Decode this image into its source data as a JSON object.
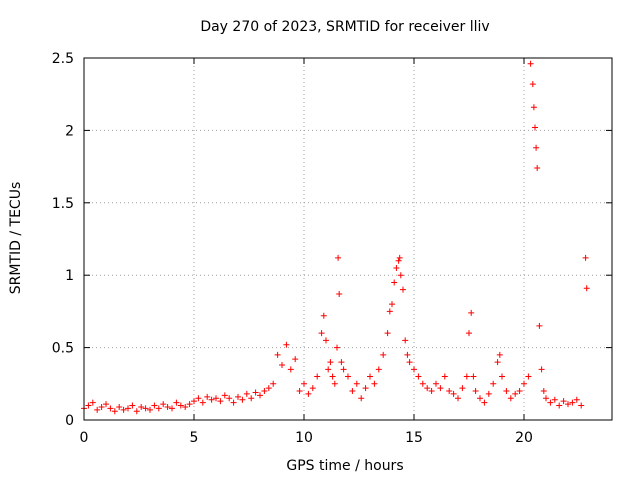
{
  "chart_data": {
    "type": "scatter",
    "title": "Day 270 of 2023, SRMTID for receiver lliv",
    "xlabel": "GPS time / hours",
    "ylabel": "SRMTID / TECUs",
    "xlim": [
      0,
      24
    ],
    "ylim": [
      0,
      2.5
    ],
    "x_ticks": [
      0,
      5,
      10,
      15,
      20
    ],
    "x_tick_labels": [
      "0",
      "5",
      "10",
      "15",
      "20"
    ],
    "y_ticks": [
      0,
      0.5,
      1,
      1.5,
      2,
      2.5
    ],
    "y_tick_labels": [
      "0",
      "0.5",
      "1",
      "1.5",
      "2",
      "2.5"
    ],
    "grid": true,
    "marker": "+",
    "series": [
      {
        "name": "SRMTID",
        "color": "#ff0000",
        "x": [
          0.0,
          0.2,
          0.4,
          0.6,
          0.8,
          1.0,
          1.2,
          1.4,
          1.6,
          1.8,
          2.0,
          2.2,
          2.4,
          2.6,
          2.8,
          3.0,
          3.2,
          3.4,
          3.6,
          3.8,
          4.0,
          4.2,
          4.4,
          4.6,
          4.8,
          5.0,
          5.2,
          5.4,
          5.6,
          5.8,
          6.0,
          6.2,
          6.4,
          6.6,
          6.8,
          7.0,
          7.2,
          7.4,
          7.6,
          7.8,
          8.0,
          8.2,
          8.4,
          8.6,
          8.8,
          9.0,
          9.2,
          9.4,
          9.6,
          9.8,
          10.0,
          10.2,
          10.4,
          10.6,
          10.8,
          10.9,
          11.0,
          11.1,
          11.2,
          11.3,
          11.4,
          11.5,
          11.55,
          11.6,
          11.7,
          11.8,
          12.0,
          12.2,
          12.4,
          12.6,
          12.8,
          13.0,
          13.2,
          13.4,
          13.6,
          13.8,
          13.9,
          14.0,
          14.1,
          14.2,
          14.3,
          14.35,
          14.4,
          14.5,
          14.6,
          14.7,
          14.8,
          15.0,
          15.2,
          15.4,
          15.6,
          15.8,
          16.0,
          16.2,
          16.4,
          16.6,
          16.8,
          17.0,
          17.2,
          17.4,
          17.5,
          17.6,
          17.7,
          17.8,
          18.0,
          18.2,
          18.4,
          18.6,
          18.8,
          18.9,
          19.0,
          19.2,
          19.4,
          19.6,
          19.8,
          20.0,
          20.2,
          20.3,
          20.4,
          20.45,
          20.5,
          20.55,
          20.6,
          20.7,
          20.8,
          20.9,
          21.0,
          21.2,
          21.4,
          21.6,
          21.8,
          22.0,
          22.2,
          22.4,
          22.6,
          22.8,
          22.85
        ],
        "y": [
          0.08,
          0.1,
          0.12,
          0.07,
          0.09,
          0.11,
          0.08,
          0.06,
          0.09,
          0.07,
          0.08,
          0.1,
          0.06,
          0.09,
          0.08,
          0.07,
          0.1,
          0.08,
          0.11,
          0.09,
          0.08,
          0.12,
          0.1,
          0.09,
          0.11,
          0.13,
          0.15,
          0.12,
          0.16,
          0.14,
          0.15,
          0.13,
          0.17,
          0.15,
          0.12,
          0.16,
          0.14,
          0.18,
          0.15,
          0.19,
          0.17,
          0.2,
          0.22,
          0.25,
          0.45,
          0.38,
          0.52,
          0.35,
          0.42,
          0.2,
          0.25,
          0.18,
          0.22,
          0.3,
          0.6,
          0.72,
          0.55,
          0.35,
          0.4,
          0.3,
          0.25,
          0.5,
          1.12,
          0.87,
          0.4,
          0.35,
          0.3,
          0.2,
          0.25,
          0.15,
          0.22,
          0.3,
          0.25,
          0.35,
          0.45,
          0.6,
          0.75,
          0.8,
          0.95,
          1.05,
          1.1,
          1.12,
          1.0,
          0.9,
          0.55,
          0.45,
          0.4,
          0.35,
          0.3,
          0.25,
          0.22,
          0.2,
          0.25,
          0.22,
          0.3,
          0.2,
          0.18,
          0.15,
          0.22,
          0.3,
          0.6,
          0.74,
          0.3,
          0.2,
          0.15,
          0.12,
          0.18,
          0.25,
          0.4,
          0.45,
          0.3,
          0.2,
          0.15,
          0.18,
          0.2,
          0.25,
          0.3,
          2.46,
          2.32,
          2.16,
          2.02,
          1.88,
          1.74,
          0.65,
          0.35,
          0.2,
          0.15,
          0.12,
          0.14,
          0.1,
          0.13,
          0.11,
          0.12,
          0.14,
          0.1,
          1.12,
          0.91
        ]
      }
    ]
  }
}
